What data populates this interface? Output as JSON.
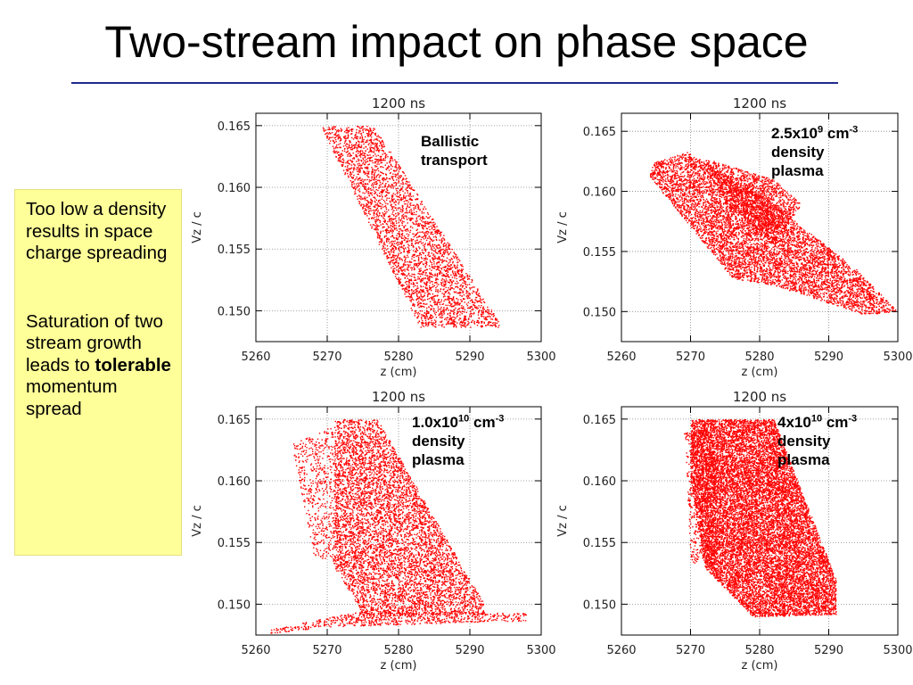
{
  "slide": {
    "title": "Two-stream impact on phase space"
  },
  "notes": {
    "para1": "Too low a density results in space charge spreading",
    "para2_before": "Saturation of two stream growth leads to",
    "para2_bold": "tolerable",
    "para2_after": "momentum spread"
  },
  "panel_labels": {
    "p1": {
      "line1": "Ballistic",
      "line2": "transport"
    },
    "p2": {
      "base": "2.5x10",
      "exp": "9",
      "unit": "cm",
      "unit_exp": "-3",
      "line2": "density",
      "line3": "plasma"
    },
    "p3": {
      "base": "1.0x10",
      "exp": "10",
      "unit": "cm",
      "unit_exp": "-3",
      "line2": "density",
      "line3": "plasma"
    },
    "p4": {
      "base": "4x10",
      "exp": "10",
      "unit": "cm",
      "unit_exp": "-3",
      "line2": "density",
      "line3": "plasma"
    }
  },
  "colors": {
    "points": "#ff0000",
    "title_rule": "#1f2a8c",
    "note_bg": "#ffff99"
  },
  "chart_data": [
    {
      "type": "scatter",
      "title": "1200 ns",
      "xlabel": "z (cm)",
      "ylabel": "Vz / c",
      "xlim": [
        5260,
        5300
      ],
      "ylim": [
        0.1475,
        0.166
      ],
      "xticks": [
        "5260",
        "5270",
        "5280",
        "5290",
        "5300"
      ],
      "yticks": [
        "0.150",
        "0.155",
        "0.160",
        "0.165"
      ],
      "grid": true,
      "regions": [
        {
          "polygon": [
            [
              5269.0,
              0.165
            ],
            [
              5276.5,
              0.165
            ],
            [
              5294.5,
              0.1487
            ],
            [
              5283.0,
              0.1487
            ]
          ],
          "density": 3500
        }
      ]
    },
    {
      "type": "scatter",
      "title": "1200 ns",
      "xlabel": "z (cm)",
      "ylabel": "Vz / c",
      "xlim": [
        5260,
        5300
      ],
      "ylim": [
        0.1475,
        0.1665
      ],
      "xticks": [
        "5260",
        "5270",
        "5280",
        "5290",
        "5300"
      ],
      "yticks": [
        "0.150",
        "0.155",
        "0.160",
        "0.165"
      ],
      "grid": true,
      "regions": [
        {
          "polygon": [
            [
              5264.5,
              0.1624
            ],
            [
              5269.5,
              0.1633
            ],
            [
              5282.0,
              0.159
            ],
            [
              5294.0,
              0.1535
            ],
            [
              5300.0,
              0.15
            ],
            [
              5295.0,
              0.1498
            ],
            [
              5282.0,
              0.1522
            ],
            [
              5276.0,
              0.1528
            ],
            [
              5264.0,
              0.1613
            ]
          ],
          "density": 6500
        },
        {
          "polygon": [
            [
              5272.0,
              0.1628
            ],
            [
              5282.0,
              0.161
            ],
            [
              5286.0,
              0.159
            ],
            [
              5282.0,
              0.1555
            ],
            [
              5275.0,
              0.159
            ]
          ],
          "density": 1500
        }
      ]
    },
    {
      "type": "scatter",
      "title": "1200 ns",
      "xlabel": "z (cm)",
      "ylabel": "Vz / c",
      "xlim": [
        5260,
        5300
      ],
      "ylim": [
        0.1475,
        0.166
      ],
      "xticks": [
        "5260",
        "5270",
        "5280",
        "5290",
        "5300"
      ],
      "yticks": [
        "0.150",
        "0.155",
        "0.160",
        "0.165"
      ],
      "grid": true,
      "regions": [
        {
          "polygon": [
            [
              5271.0,
              0.165
            ],
            [
              5277.0,
              0.165
            ],
            [
              5292.0,
              0.15
            ],
            [
              5292.0,
              0.1492
            ],
            [
              5275.0,
              0.1492
            ],
            [
              5271.0,
              0.153
            ]
          ],
          "density": 6000
        },
        {
          "polygon": [
            [
              5265.0,
              0.163
            ],
            [
              5271.0,
              0.1645
            ],
            [
              5272.0,
              0.153
            ],
            [
              5268.0,
              0.154
            ]
          ],
          "density": 600
        },
        {
          "polygon": [
            [
              5262.0,
              0.148
            ],
            [
              5275.0,
              0.1495
            ],
            [
              5298.0,
              0.1493
            ],
            [
              5298.0,
              0.1487
            ],
            [
              5270.0,
              0.1482
            ],
            [
              5262.0,
              0.1476
            ]
          ],
          "density": 700
        }
      ]
    },
    {
      "type": "scatter",
      "title": "1200 ns",
      "xlabel": "z (cm)",
      "ylabel": "Vz / c",
      "xlim": [
        5260,
        5300
      ],
      "ylim": [
        0.1475,
        0.166
      ],
      "xticks": [
        "5260",
        "5270",
        "5280",
        "5290",
        "5300"
      ],
      "yticks": [
        "0.150",
        "0.155",
        "0.160",
        "0.165"
      ],
      "grid": true,
      "regions": [
        {
          "polygon": [
            [
              5270.0,
              0.165
            ],
            [
              5282.0,
              0.165
            ],
            [
              5291.0,
              0.152
            ],
            [
              5291.0,
              0.1492
            ],
            [
              5279.0,
              0.149
            ],
            [
              5272.0,
              0.153
            ],
            [
              5270.0,
              0.16
            ]
          ],
          "density": 14000
        },
        {
          "polygon": [
            [
              5269.0,
              0.164
            ],
            [
              5273.0,
              0.1645
            ],
            [
              5274.0,
              0.1525
            ],
            [
              5270.0,
              0.1535
            ]
          ],
          "density": 700
        }
      ]
    }
  ]
}
